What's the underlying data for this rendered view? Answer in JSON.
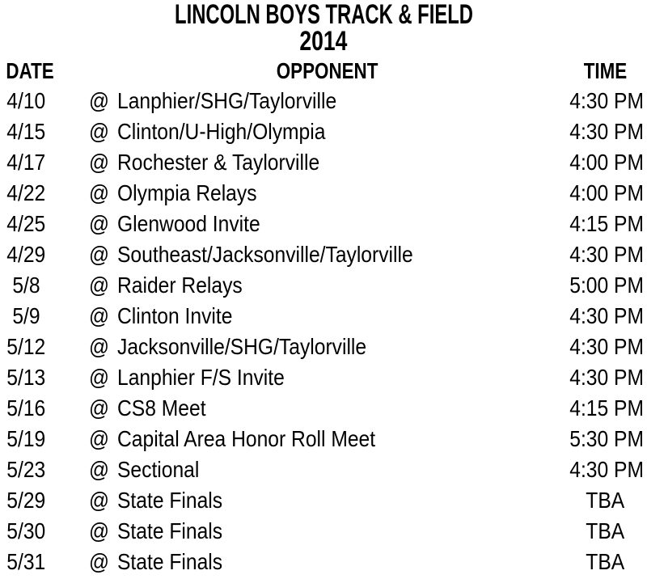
{
  "title": "LINCOLN BOYS TRACK & FIELD",
  "year": "2014",
  "at_symbol": "@",
  "colors": {
    "text": "#000000",
    "background": "#ffffff"
  },
  "columns": {
    "date": "DATE",
    "opponent": "OPPONENT",
    "time": "TIME"
  },
  "schedule": [
    {
      "date": "4/10",
      "opponent": "Lanphier/SHG/Taylorville",
      "time": "4:30 PM"
    },
    {
      "date": "4/15",
      "opponent": "Clinton/U-High/Olympia",
      "time": "4:30 PM"
    },
    {
      "date": "4/17",
      "opponent": "Rochester & Taylorville",
      "time": "4:00 PM"
    },
    {
      "date": "4/22",
      "opponent": "Olympia Relays",
      "time": "4:00 PM"
    },
    {
      "date": "4/25",
      "opponent": "Glenwood Invite",
      "time": "4:15 PM"
    },
    {
      "date": "4/29",
      "opponent": "Southeast/Jacksonville/Taylorville",
      "time": "4:30 PM"
    },
    {
      "date": "5/8",
      "opponent": "Raider Relays",
      "time": "5:00 PM"
    },
    {
      "date": "5/9",
      "opponent": "Clinton Invite",
      "time": "4:30 PM"
    },
    {
      "date": "5/12",
      "opponent": "Jacksonville/SHG/Taylorville",
      "time": "4:30 PM"
    },
    {
      "date": "5/13",
      "opponent": "Lanphier F/S Invite",
      "time": "4:30 PM"
    },
    {
      "date": "5/16",
      "opponent": "CS8 Meet",
      "time": "4:15 PM"
    },
    {
      "date": "5/19",
      "opponent": "Capital Area Honor Roll Meet",
      "time": "5:30 PM"
    },
    {
      "date": "5/23",
      "opponent": "Sectional",
      "time": "4:30 PM"
    },
    {
      "date": "5/29",
      "opponent": "State Finals",
      "time": "TBA"
    },
    {
      "date": "5/30",
      "opponent": "State Finals",
      "time": "TBA"
    },
    {
      "date": "5/31",
      "opponent": "State Finals",
      "time": "TBA"
    }
  ]
}
